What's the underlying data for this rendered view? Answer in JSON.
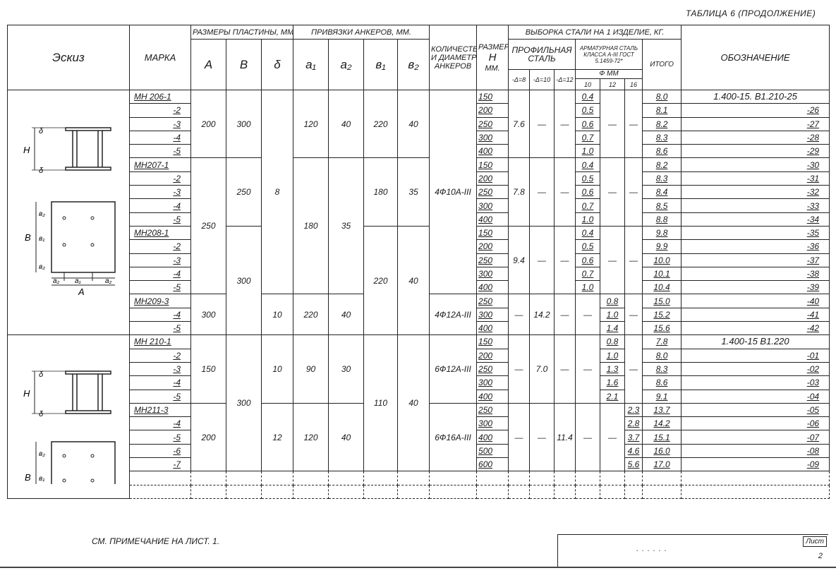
{
  "title": "Таблица 6 (продолжение)",
  "header": {
    "sketch": "Эскиз",
    "mark": "Марка",
    "plate_sizes": "Размеры пластины, мм",
    "A": "A",
    "B": "B",
    "delta": "δ",
    "anchor_offsets": "Привязки анкеров, мм.",
    "a1": "a₁",
    "a2": "a₂",
    "b1": "в₁",
    "b2": "в₂",
    "anchors_qty": [
      "Количество",
      "и диаметр",
      "анкеров"
    ],
    "size_h": [
      "Размер",
      "H",
      "мм."
    ],
    "steel_sample": "Выборка стали на 1 изделие, кг.",
    "profile_steel": "Профильная сталь",
    "rebar_steel": "Арматурная сталь класса А-III ГОСТ 5.1459-72*",
    "total": "Итого",
    "d8": "-δ=8",
    "d10": "-δ=10",
    "d12": "-δ=12",
    "phi_mm": "Ф мм",
    "f10": "10",
    "f12": "12",
    "f16": "16",
    "designation": "Обозначение"
  },
  "sketch_labels": {
    "H": "H",
    "delta": "δ",
    "B": "B",
    "b1": "в₁",
    "b2": "в₂",
    "a1": "a₁",
    "a2": "a₂",
    "A": "A"
  },
  "columns": {
    "mark": [
      "МН 206-1",
      "-2",
      "-3",
      "-4",
      "-5",
      "МН207-1",
      "-2",
      "-3",
      "-4",
      "-5",
      "МН208-1",
      "-2",
      "-3",
      "-4",
      "-5",
      "МН209-3",
      "-4",
      "-5",
      "МН 210-1",
      "-2",
      "-3",
      "-4",
      "-5",
      "МН211-3",
      "-4",
      "-5",
      "-6",
      "-7"
    ],
    "A": [
      [
        "200",
        5
      ],
      [
        "250",
        10
      ],
      [
        "300",
        3
      ],
      [
        "150",
        5
      ],
      [
        "200",
        5
      ]
    ],
    "B": [
      [
        "300",
        5
      ],
      [
        "250",
        5
      ],
      [
        "300",
        8
      ],
      [
        "300",
        10
      ]
    ],
    "delta": [
      [
        "8",
        15
      ],
      [
        "10",
        3
      ],
      [
        "10",
        5
      ],
      [
        "12",
        5
      ]
    ],
    "a1": [
      [
        "120",
        5
      ],
      [
        "180",
        10
      ],
      [
        "220",
        3
      ],
      [
        "90",
        5
      ],
      [
        "120",
        5
      ]
    ],
    "a2": [
      [
        "40",
        5
      ],
      [
        "35",
        10
      ],
      [
        "40",
        3
      ],
      [
        "30",
        5
      ],
      [
        "40",
        5
      ]
    ],
    "b1": [
      [
        "220",
        5
      ],
      [
        "180",
        5
      ],
      [
        "220",
        8
      ],
      [
        "110",
        10
      ]
    ],
    "b2": [
      [
        "40",
        5
      ],
      [
        "35",
        5
      ],
      [
        "40",
        8
      ],
      [
        "40",
        10
      ]
    ],
    "anchors": [
      [
        "4Ф10А-III",
        15
      ],
      [
        "4Ф12А-III",
        3
      ],
      [
        "6Ф12А-III",
        5
      ],
      [
        "6Ф16А-III",
        5
      ]
    ],
    "H": [
      "150",
      "200",
      "250",
      "300",
      "400",
      "150",
      "200",
      "250",
      "300",
      "400",
      "150",
      "200",
      "250",
      "300",
      "400",
      "250",
      "300",
      "400",
      "150",
      "200",
      "250",
      "300",
      "400",
      "250",
      "300",
      "400",
      "500",
      "600"
    ],
    "d8": [
      [
        "7.6",
        5
      ],
      [
        "7.8",
        5
      ],
      [
        "9.4",
        5
      ],
      [
        "—",
        3
      ],
      [
        "—",
        5
      ],
      [
        "—",
        5
      ]
    ],
    "d10": [
      [
        "—",
        5
      ],
      [
        "—",
        5
      ],
      [
        "—",
        5
      ],
      [
        "14.2",
        3
      ],
      [
        "7.0",
        5
      ],
      [
        "—",
        5
      ]
    ],
    "d12": [
      [
        "—",
        5
      ],
      [
        "—",
        5
      ],
      [
        "—",
        5
      ],
      [
        "—",
        3
      ],
      [
        "—",
        5
      ],
      [
        "11.4",
        5
      ]
    ],
    "f10": [
      "0.4",
      "0.5",
      "0.6",
      "0.7",
      "1.0",
      "0.4",
      "0.5",
      "0.6",
      "0.7",
      "1.0",
      "0.4",
      "0.5",
      "0.6",
      "0.7",
      "1.0",
      [
        "—",
        3
      ],
      [
        "—",
        5
      ],
      [
        "—",
        5
      ]
    ],
    "f12": [
      [
        "—",
        5
      ],
      [
        "—",
        5
      ],
      [
        "—",
        5
      ],
      "0.8",
      "1.0",
      "1.4",
      "0.8",
      "1.0",
      "1.3",
      "1.6",
      "2.1",
      [
        "—",
        5
      ]
    ],
    "f16": [
      [
        "—",
        5
      ],
      [
        "—",
        5
      ],
      [
        "—",
        5
      ],
      [
        "—",
        3
      ],
      [
        "—",
        5
      ],
      "2.3",
      "2.8",
      "3.7",
      "4.6",
      "5.6"
    ],
    "total": [
      "8.0",
      "8.1",
      "8.2",
      "8.3",
      "8.6",
      "8.2",
      "8.3",
      "8.4",
      "8.5",
      "8.8",
      "9.8",
      "9.9",
      "10.0",
      "10.1",
      "10.4",
      "15.0",
      "15.2",
      "15.6",
      "7.8",
      "8.0",
      "8.3",
      "8.6",
      "9.1",
      "13.7",
      "14.2",
      "15.1",
      "16.0",
      "17.0"
    ],
    "designation": [
      "1.400-15. B1.210-25",
      "-26",
      "-27",
      "-28",
      "-29",
      "-30",
      "-31",
      "-32",
      "-33",
      "-34",
      "-35",
      "-36",
      "-37",
      "-38",
      "-39",
      "-40",
      "-41",
      "-42",
      "1.400-15 B1.220",
      "-01",
      "-02",
      "-03",
      "-04",
      "-05",
      "-06",
      "-07",
      "-08",
      "-09"
    ]
  },
  "footer": {
    "note": "См. примечание на лист. 1.",
    "sheet_label": "Лист",
    "sheet_number": "2"
  }
}
